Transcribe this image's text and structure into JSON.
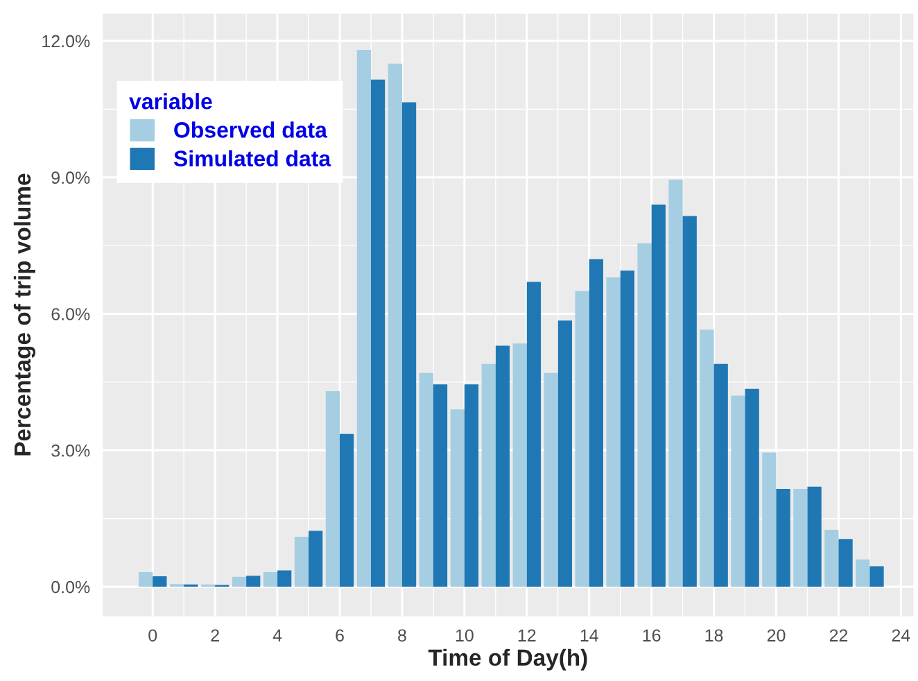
{
  "chart_data": {
    "type": "bar",
    "xlabel": "Time of Day(h)",
    "ylabel": "Percentage of trip volume",
    "legend_title": "variable",
    "x": [
      0,
      1,
      2,
      3,
      4,
      5,
      6,
      7,
      8,
      9,
      10,
      11,
      12,
      13,
      14,
      15,
      16,
      17,
      18,
      19,
      20,
      21,
      22,
      23
    ],
    "series": [
      {
        "name": "Observed data",
        "color": "#a6cee3",
        "values": [
          0.32,
          0.06,
          0.05,
          0.22,
          0.32,
          1.1,
          4.3,
          11.8,
          11.5,
          4.7,
          3.9,
          4.9,
          5.35,
          4.7,
          6.5,
          6.8,
          7.55,
          8.95,
          5.65,
          4.2,
          2.95,
          2.15,
          1.25,
          0.6
        ]
      },
      {
        "name": "Simulated data",
        "color": "#1f78b4",
        "values": [
          0.23,
          0.05,
          0.04,
          0.24,
          0.36,
          1.23,
          3.36,
          11.15,
          10.65,
          4.45,
          4.45,
          5.3,
          6.7,
          5.85,
          7.2,
          6.95,
          8.4,
          8.15,
          4.9,
          4.35,
          2.15,
          2.2,
          1.05,
          0.45
        ]
      }
    ],
    "xlim": [
      -1.6,
      24.4
    ],
    "xticks": [
      0,
      2,
      4,
      6,
      8,
      10,
      12,
      14,
      16,
      18,
      20,
      22,
      24
    ],
    "ylim": [
      -0.65,
      12.6
    ],
    "yticks": [
      {
        "value": 0,
        "label": "0.0%"
      },
      {
        "value": 3,
        "label": "3.0%"
      },
      {
        "value": 6,
        "label": "6.0%"
      },
      {
        "value": 9,
        "label": "9.0%"
      },
      {
        "value": 12,
        "label": "12.0%"
      }
    ],
    "grid": true,
    "legend": "top left"
  }
}
